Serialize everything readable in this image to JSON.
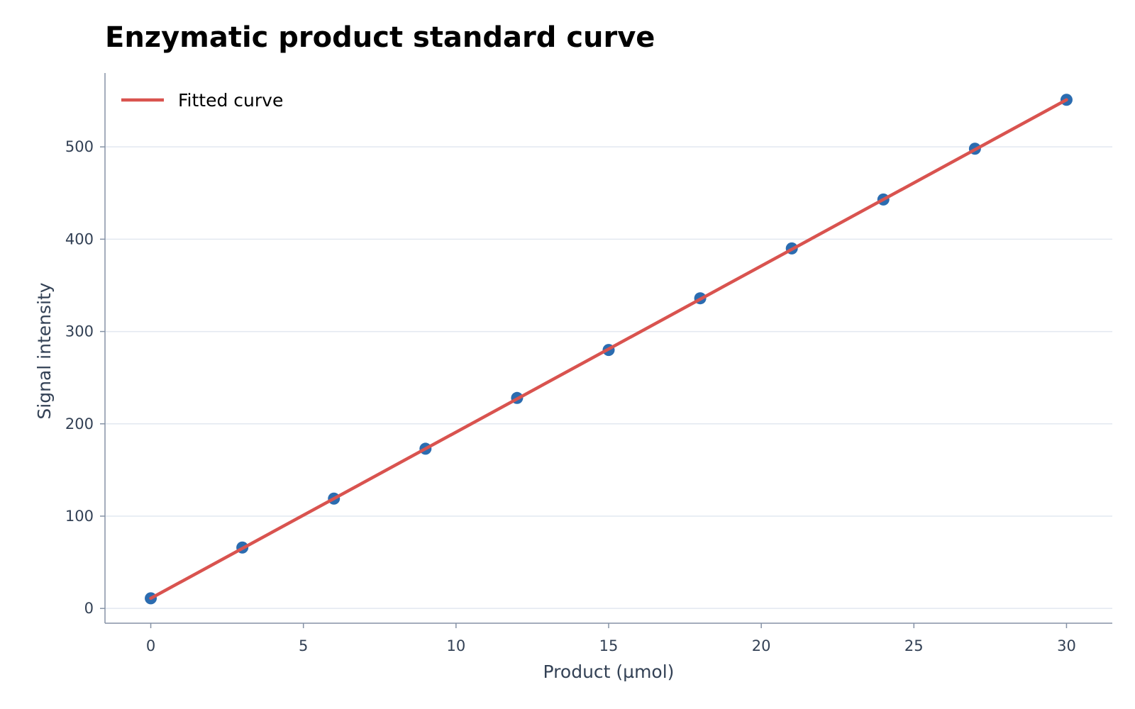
{
  "chart_data": {
    "type": "scatter",
    "title": "Enzymatic product standard curve",
    "xlabel": "Product (µmol)",
    "ylabel": "Signal intensity",
    "xlim": [
      -1.5,
      31.5
    ],
    "ylim": [
      -16,
      580
    ],
    "x_ticks": [
      0,
      5,
      10,
      15,
      20,
      25,
      30
    ],
    "y_ticks": [
      0,
      100,
      200,
      300,
      400,
      500
    ],
    "grid": "horizontal",
    "legend_position": "top-left",
    "series": [
      {
        "kind": "points",
        "color": "#2b6cb0",
        "x": [
          0,
          3,
          6,
          9,
          12,
          15,
          18,
          21,
          24,
          27,
          30
        ],
        "y": [
          11,
          66,
          119,
          173,
          228,
          280,
          336,
          390,
          443,
          498,
          551
        ]
      },
      {
        "kind": "line",
        "name": "Fitted curve",
        "color": "#d9534f",
        "x": [
          0,
          30
        ],
        "y": [
          11,
          551
        ]
      }
    ]
  }
}
